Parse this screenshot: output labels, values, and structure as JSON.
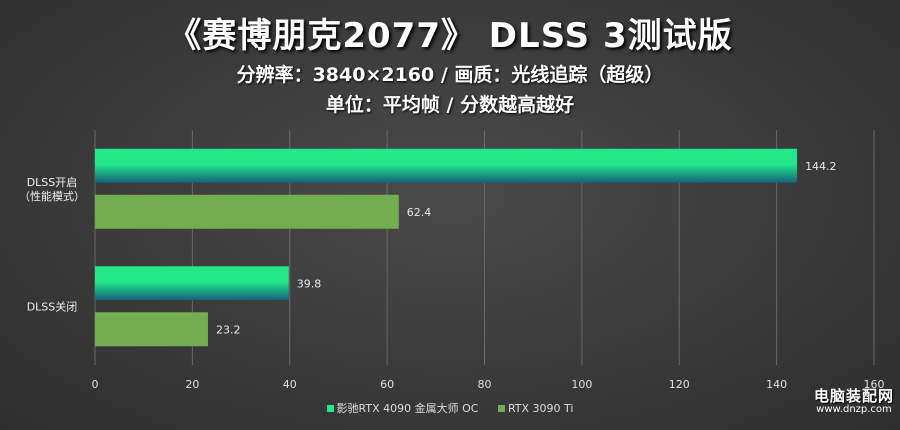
{
  "title": "《赛博朋克2077》 DLSS 3测试版",
  "subtitle1": "分辨率：3840×2160 / 画质：光线追踪（超级）",
  "subtitle2": "单位：平均帧 / 分数越高越好",
  "watermark": {
    "line1": "电脑装配网",
    "line2": "www.dnzp.com"
  },
  "colors": {
    "series1_top": "#22e88a",
    "series1_bottom": "#15607c",
    "series2": "#74ad4f",
    "grid": "#6a6a6a"
  },
  "chart_data": {
    "type": "bar",
    "orientation": "horizontal",
    "categories": [
      "DLSS开启\n（性能模式）",
      "DLSS关闭"
    ],
    "series": [
      {
        "name": "影驰RTX 4090 金属大师 OC",
        "values": [
          144.2,
          39.8
        ]
      },
      {
        "name": "RTX 3090 Ti",
        "values": [
          62.4,
          23.2
        ]
      }
    ],
    "xlim": [
      0,
      160
    ],
    "xticks": [
      0,
      20,
      40,
      60,
      80,
      100,
      120,
      140,
      160
    ],
    "grid": true,
    "legend": "bottom"
  }
}
